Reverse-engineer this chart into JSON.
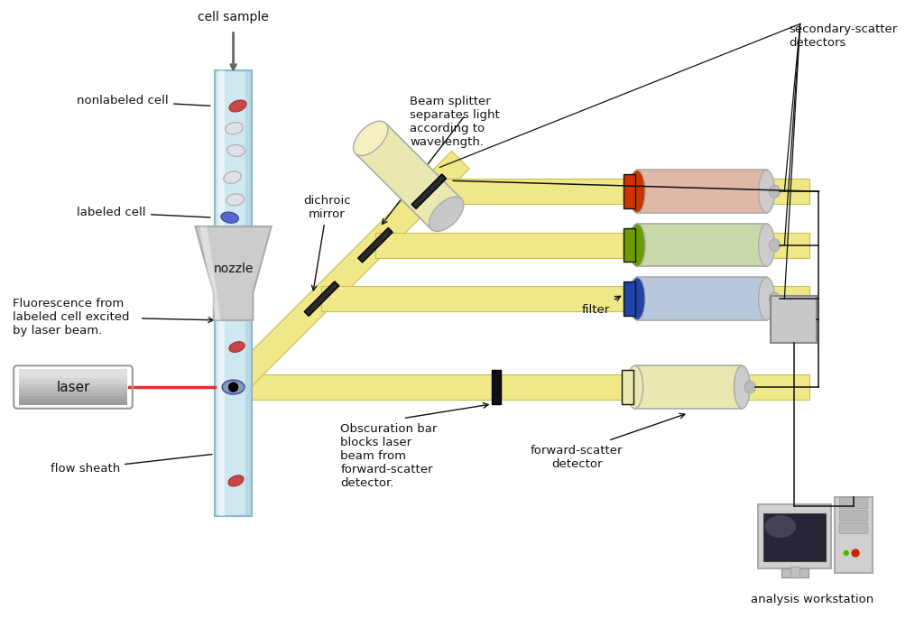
{
  "bg_color": "#ffffff",
  "figsize": [
    10.24,
    6.85
  ],
  "dpi": 100,
  "labels": {
    "cell_sample": "cell sample",
    "nonlabeled_cell": "nonlabeled cell",
    "labeled_cell": "labeled cell",
    "nozzle": "nozzle",
    "laser": "laser",
    "flow_sheath": "flow sheath",
    "fluorescence": "Fluorescence from\nlabeled cell excited\nby laser beam.",
    "beam_splitter": "Beam splitter\nseparates light\naccording to\nwavelength.",
    "dichroic_mirror": "dichroic\nmirror",
    "obscuration": "Obscuration bar\nblocks laser\nbeam from\nforward-scatter\ndetector.",
    "forward_scatter": "forward-scatter\ndetector",
    "filter": "filter",
    "secondary_scatter": "secondary-scatter\ndetectors",
    "analysis": "analysis workstation"
  },
  "colors": {
    "tube_fill": "#cde8f0",
    "tube_border": "#8ab8c8",
    "nozzle_fill": "#cccccc",
    "nozzle_border": "#aaaaaa",
    "laser_beam": "#e03030",
    "beam_path": "#f0e888",
    "beam_path_border": "#c8c050",
    "dichroic_dark": "#2a2a2a",
    "detector_gray": "#cccccc",
    "detector_border": "#aaaaaa",
    "filter_red": "#cc3300",
    "filter_green": "#6a9e00",
    "filter_blue": "#2244aa",
    "detector_pink": "#e0b8a8",
    "detector_green": "#c8d8a8",
    "detector_blue": "#b8c8dc",
    "detector_yellow_body": "#e8e8b0",
    "detector_yellow_light": "#f5f0c0",
    "sig_box": "#c8c8c8",
    "wire": "#111111",
    "text": "#111111",
    "cell_red": "#cc4444",
    "cell_blue": "#5566cc",
    "cell_white": "#e0e0e8",
    "arrow_gray": "#666666"
  }
}
